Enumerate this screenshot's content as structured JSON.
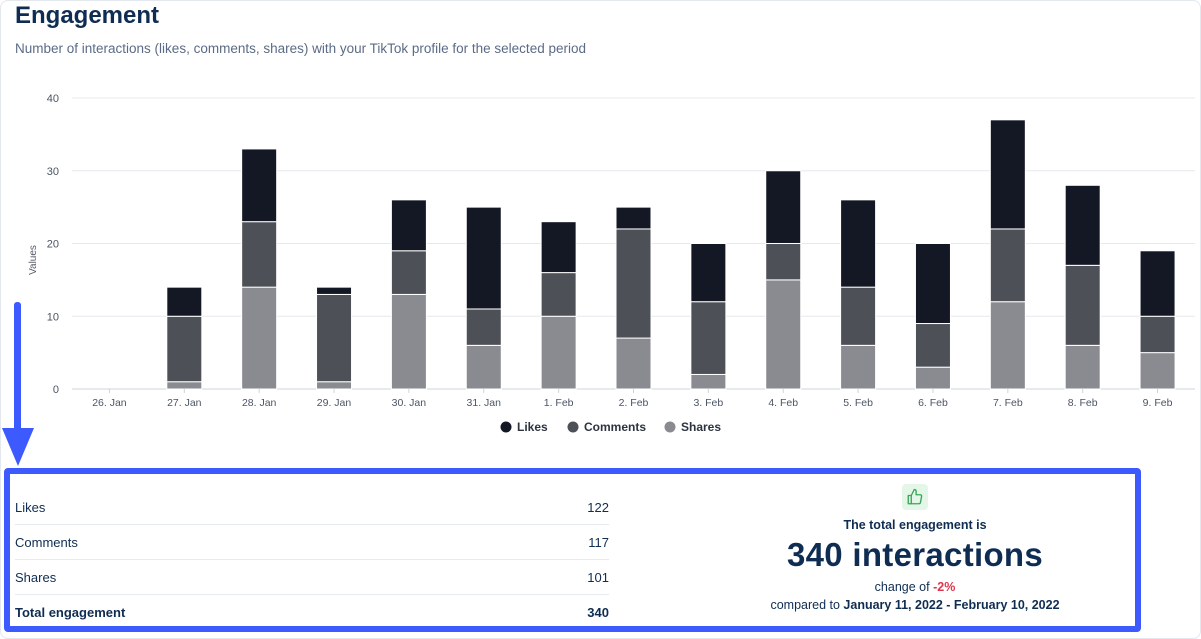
{
  "header": {
    "title": "Engagement",
    "subtitle": "Number of interactions (likes, comments, shares) with your TikTok profile for the selected period"
  },
  "chart_data": {
    "type": "bar",
    "stacked": true,
    "ylabel": "Values",
    "ylim": [
      0,
      40
    ],
    "yticks": [
      0,
      10,
      20,
      30,
      40
    ],
    "grid": true,
    "legend_position": "bottom-center",
    "categories": [
      "26. Jan",
      "27. Jan",
      "28. Jan",
      "29. Jan",
      "30. Jan",
      "31. Jan",
      "1. Feb",
      "2. Feb",
      "3. Feb",
      "4. Feb",
      "5. Feb",
      "6. Feb",
      "7. Feb",
      "8. Feb",
      "9. Feb"
    ],
    "series": [
      {
        "name": "Likes",
        "color": "#141824",
        "values": [
          0,
          4,
          10,
          1,
          7,
          14,
          7,
          3,
          8,
          10,
          12,
          11,
          15,
          11,
          9
        ]
      },
      {
        "name": "Comments",
        "color": "#4e5057",
        "values": [
          0,
          9,
          9,
          12,
          6,
          5,
          6,
          15,
          10,
          5,
          8,
          6,
          10,
          11,
          5
        ]
      },
      {
        "name": "Shares",
        "color": "#8a8b90",
        "values": [
          0,
          1,
          14,
          1,
          13,
          6,
          10,
          7,
          2,
          15,
          6,
          3,
          12,
          6,
          5
        ]
      }
    ]
  },
  "summary": {
    "rows": [
      {
        "label": "Likes",
        "value": "122"
      },
      {
        "label": "Comments",
        "value": "117"
      },
      {
        "label": "Shares",
        "value": "101"
      }
    ],
    "total": {
      "label": "Total engagement",
      "value": "340"
    },
    "engagement_label": "The total engagement is",
    "engagement_value": "340 interactions",
    "change_prefix": "change of",
    "change_value": "-2%",
    "compare_prefix": "compared to",
    "compare_range": "January 11, 2022 - February 10, 2022",
    "thumb_icon": "thumbs-up-icon",
    "highlight_color": "#3d5afe"
  }
}
